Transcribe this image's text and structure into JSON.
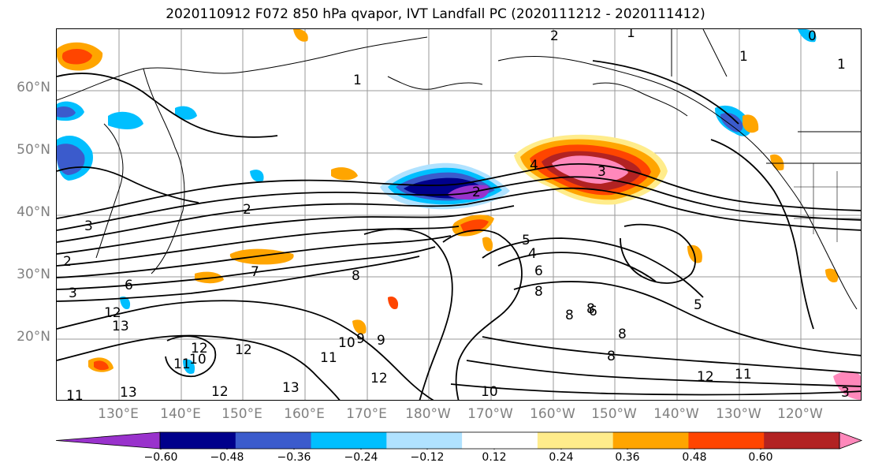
{
  "title": "2020110912 F072 850 hPa qvapor, IVT Landfall PC (2020111212 - 2020111412)",
  "lat_labels": [
    "60°N",
    "50°N",
    "40°N",
    "30°N",
    "20°N"
  ],
  "lon_labels": [
    "130°E",
    "140°E",
    "150°E",
    "160°E",
    "170°E",
    "180°W",
    "170°W",
    "160°W",
    "150°W",
    "140°W",
    "130°W",
    "120°W"
  ],
  "colorbar": {
    "colors": [
      "#9932cc",
      "#00008b",
      "#3b5bcc",
      "#00bfff",
      "#b0e2ff",
      "#ffffff",
      "#ffec8b",
      "#ffa500",
      "#ff4500",
      "#b22222",
      "#ff88bb"
    ],
    "ticks": [
      "−0.60",
      "−0.48",
      "−0.36",
      "−0.24",
      "−0.12",
      "0.12",
      "0.24",
      "0.36",
      "0.48",
      "0.60"
    ]
  },
  "contour_labels": [
    "2",
    "1",
    "0",
    "1",
    "1",
    "2",
    "3",
    "4",
    "3",
    "2",
    "2",
    "3",
    "5",
    "4",
    "6",
    "6",
    "8",
    "8",
    "8",
    "8",
    "8",
    "9",
    "10",
    "10",
    "11",
    "11",
    "11",
    "12",
    "12",
    "12",
    "12",
    "13",
    "13",
    "13",
    "10",
    "9",
    "7",
    "5",
    "6",
    "8",
    "11",
    "12",
    "12",
    "3",
    "1"
  ]
}
